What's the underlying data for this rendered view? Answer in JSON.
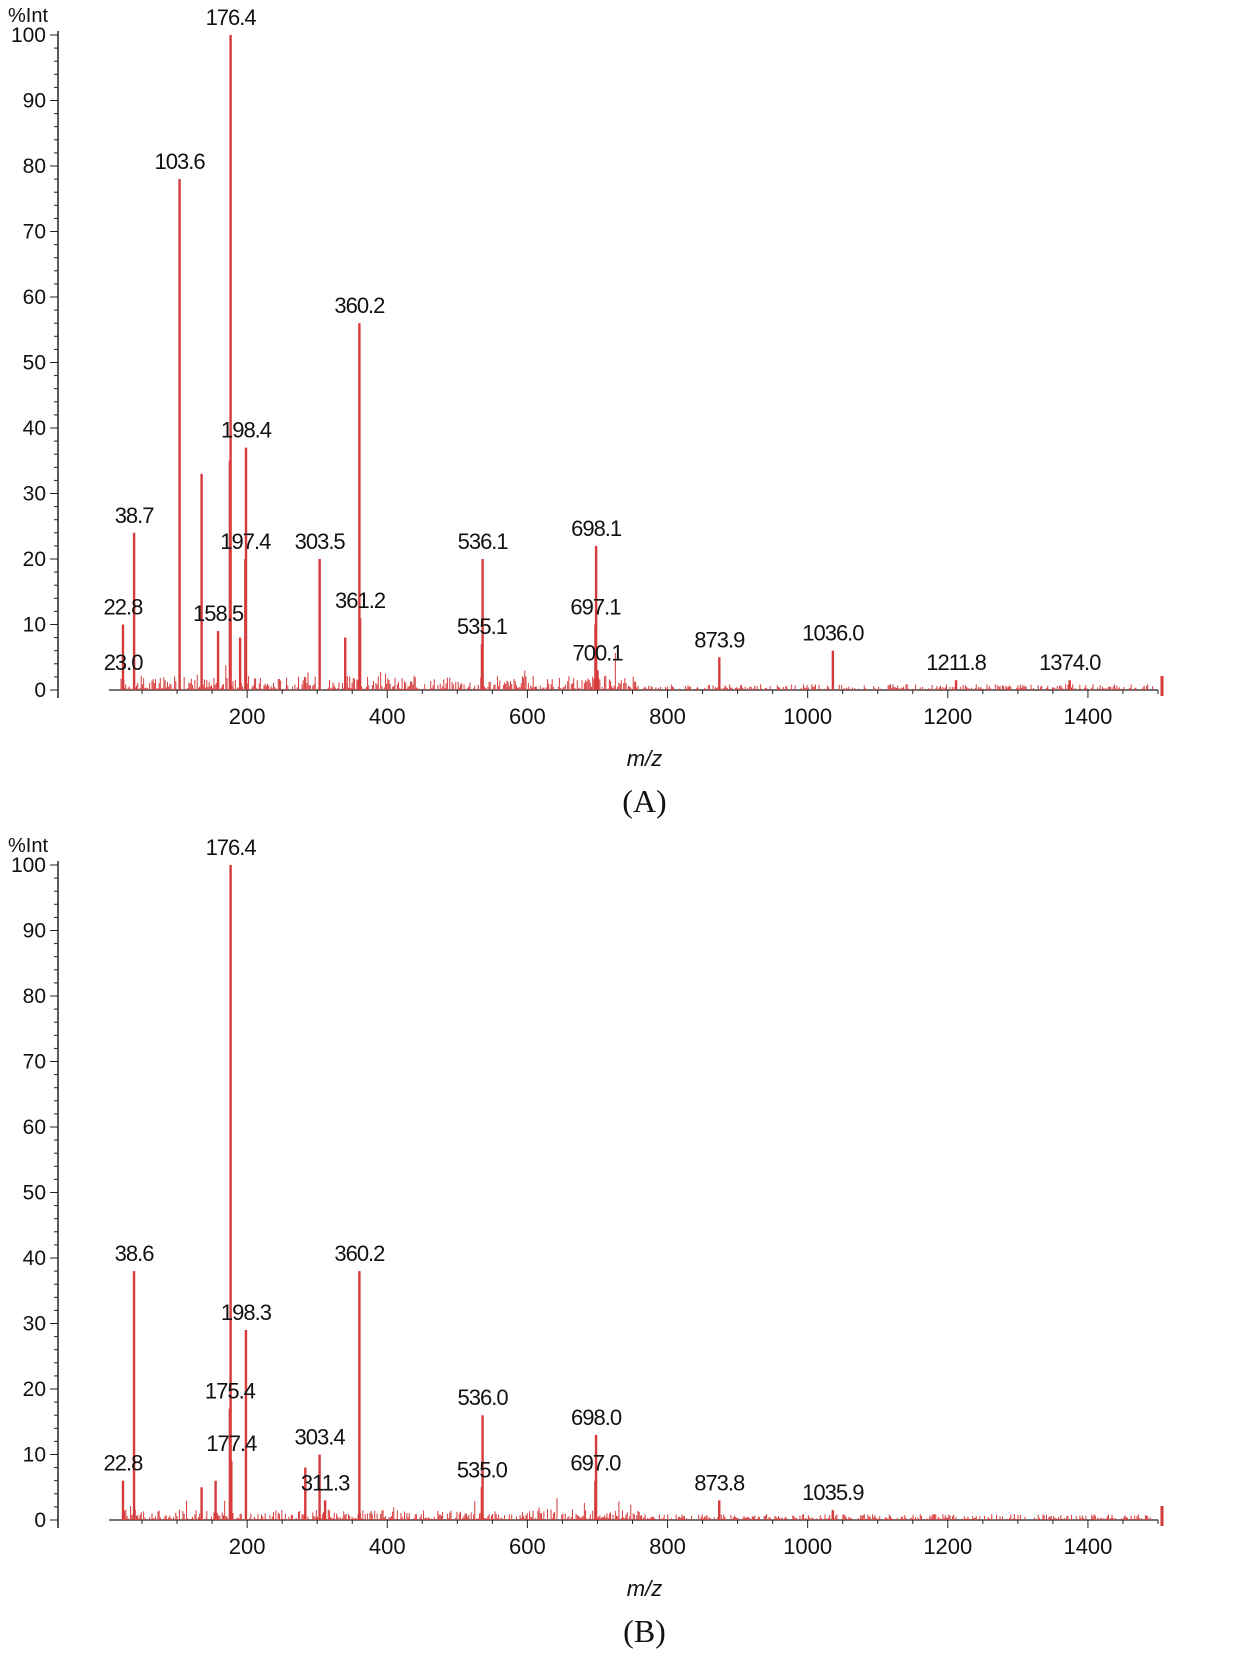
{
  "chart_data": [
    {
      "type": "bar",
      "panel_label": "(A)",
      "ylabel": "%Int",
      "xlabel": "m/z",
      "xlim": [
        0,
        1500
      ],
      "ylim": [
        0,
        100
      ],
      "xticks": [
        200,
        400,
        600,
        800,
        1000,
        1200,
        1400
      ],
      "yticks": [
        0,
        10,
        20,
        30,
        40,
        50,
        60,
        70,
        80,
        90,
        100
      ],
      "peaks": [
        {
          "mz": 22.8,
          "intensity": 10.0,
          "label": "22.8"
        },
        {
          "mz": 23.0,
          "intensity": 1.5,
          "label": "23.0"
        },
        {
          "mz": 38.7,
          "intensity": 24.0,
          "label": "38.7"
        },
        {
          "mz": 103.6,
          "intensity": 78.0,
          "label": "103.6"
        },
        {
          "mz": 135.0,
          "intensity": 33.0,
          "label": ""
        },
        {
          "mz": 158.5,
          "intensity": 9.0,
          "label": "158.5"
        },
        {
          "mz": 176.4,
          "intensity": 100.0,
          "label": "176.4"
        },
        {
          "mz": 175.4,
          "intensity": 35.0,
          "label": ""
        },
        {
          "mz": 190.0,
          "intensity": 8.0,
          "label": ""
        },
        {
          "mz": 197.4,
          "intensity": 20.0,
          "label": "197.4"
        },
        {
          "mz": 198.4,
          "intensity": 37.0,
          "label": "198.4"
        },
        {
          "mz": 303.5,
          "intensity": 20.0,
          "label": "303.5"
        },
        {
          "mz": 340.0,
          "intensity": 8.0,
          "label": ""
        },
        {
          "mz": 360.2,
          "intensity": 56.0,
          "label": "360.2"
        },
        {
          "mz": 361.2,
          "intensity": 11.0,
          "label": "361.2"
        },
        {
          "mz": 535.1,
          "intensity": 7.0,
          "label": "535.1"
        },
        {
          "mz": 536.1,
          "intensity": 20.0,
          "label": "536.1"
        },
        {
          "mz": 697.1,
          "intensity": 10.0,
          "label": "697.1"
        },
        {
          "mz": 698.1,
          "intensity": 22.0,
          "label": "698.1"
        },
        {
          "mz": 700.1,
          "intensity": 3.0,
          "label": "700.1"
        },
        {
          "mz": 873.9,
          "intensity": 5.0,
          "label": "873.9"
        },
        {
          "mz": 1036.0,
          "intensity": 6.0,
          "label": "1036.0"
        },
        {
          "mz": 1211.8,
          "intensity": 1.5,
          "label": "1211.8"
        },
        {
          "mz": 1374.0,
          "intensity": 1.5,
          "label": "1374.0"
        }
      ]
    },
    {
      "type": "bar",
      "panel_label": "(B)",
      "ylabel": "%Int",
      "xlabel": "m/z",
      "xlim": [
        0,
        1500
      ],
      "ylim": [
        0,
        100
      ],
      "xticks": [
        200,
        400,
        600,
        800,
        1000,
        1200,
        1400
      ],
      "yticks": [
        0,
        10,
        20,
        30,
        40,
        50,
        60,
        70,
        80,
        90,
        100
      ],
      "peaks": [
        {
          "mz": 22.8,
          "intensity": 6.0,
          "label": "22.8"
        },
        {
          "mz": 38.6,
          "intensity": 38.0,
          "label": "38.6"
        },
        {
          "mz": 135.0,
          "intensity": 5.0,
          "label": ""
        },
        {
          "mz": 155.0,
          "intensity": 6.0,
          "label": ""
        },
        {
          "mz": 175.4,
          "intensity": 17.0,
          "label": "175.4"
        },
        {
          "mz": 176.4,
          "intensity": 100.0,
          "label": "176.4"
        },
        {
          "mz": 177.4,
          "intensity": 9.0,
          "label": "177.4"
        },
        {
          "mz": 198.3,
          "intensity": 29.0,
          "label": "198.3"
        },
        {
          "mz": 283.0,
          "intensity": 8.0,
          "label": ""
        },
        {
          "mz": 303.4,
          "intensity": 10.0,
          "label": "303.4"
        },
        {
          "mz": 311.3,
          "intensity": 3.0,
          "label": "311.3"
        },
        {
          "mz": 360.2,
          "intensity": 38.0,
          "label": "360.2"
        },
        {
          "mz": 535.0,
          "intensity": 5.0,
          "label": "535.0"
        },
        {
          "mz": 536.0,
          "intensity": 16.0,
          "label": "536.0"
        },
        {
          "mz": 697.0,
          "intensity": 6.0,
          "label": "697.0"
        },
        {
          "mz": 698.0,
          "intensity": 13.0,
          "label": "698.0"
        },
        {
          "mz": 873.8,
          "intensity": 3.0,
          "label": "873.8"
        },
        {
          "mz": 1035.9,
          "intensity": 1.5,
          "label": "1035.9"
        }
      ]
    }
  ],
  "colors": {
    "peak": "#d63a3a",
    "axis": "#222222"
  }
}
